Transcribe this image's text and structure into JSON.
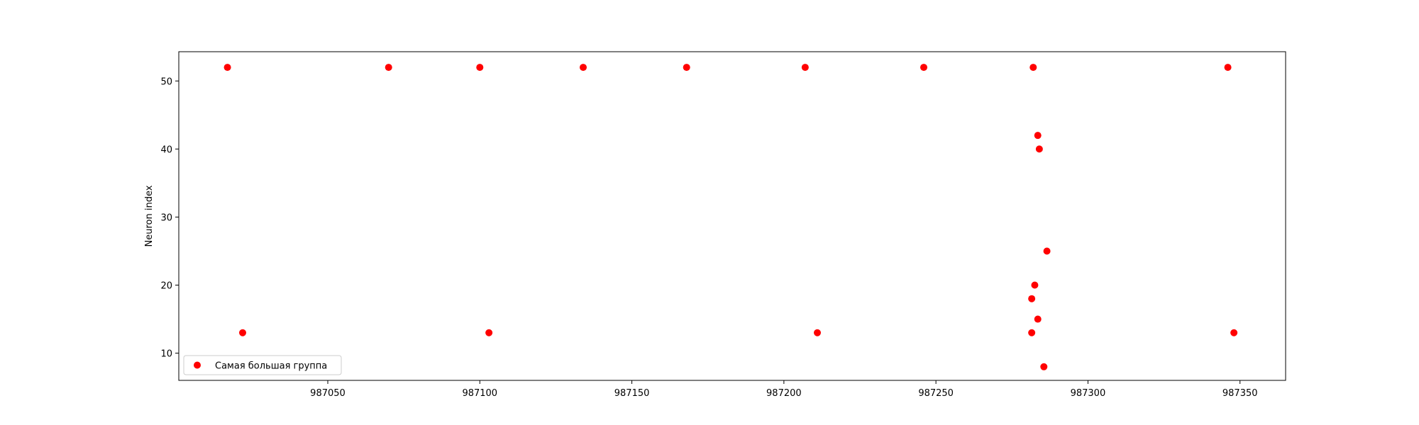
{
  "chart_data": {
    "type": "scatter",
    "title": "",
    "xlabel": "",
    "ylabel": "Neuron index",
    "xlim": [
      987001,
      987365
    ],
    "ylim": [
      6,
      54.3
    ],
    "xticks": [
      987050,
      987100,
      987150,
      987200,
      987250,
      987300,
      987350
    ],
    "yticks": [
      10,
      20,
      30,
      40,
      50
    ],
    "grid": false,
    "legend_position": "lower-left",
    "series": [
      {
        "name": "Самая большая группа",
        "color": "#ff0000",
        "marker": "circle",
        "points": [
          {
            "x": 987017,
            "y": 52
          },
          {
            "x": 987070,
            "y": 52
          },
          {
            "x": 987100,
            "y": 52
          },
          {
            "x": 987134,
            "y": 52
          },
          {
            "x": 987168,
            "y": 52
          },
          {
            "x": 987207,
            "y": 52
          },
          {
            "x": 987246,
            "y": 52
          },
          {
            "x": 987282,
            "y": 52
          },
          {
            "x": 987346,
            "y": 52
          },
          {
            "x": 987283.5,
            "y": 42
          },
          {
            "x": 987284,
            "y": 40
          },
          {
            "x": 987286.5,
            "y": 25
          },
          {
            "x": 987282.5,
            "y": 20
          },
          {
            "x": 987281.5,
            "y": 18
          },
          {
            "x": 987283.5,
            "y": 15
          },
          {
            "x": 987022,
            "y": 13
          },
          {
            "x": 987103,
            "y": 13
          },
          {
            "x": 987211,
            "y": 13
          },
          {
            "x": 987281.5,
            "y": 13
          },
          {
            "x": 987348,
            "y": 13
          },
          {
            "x": 987285.5,
            "y": 8
          }
        ]
      }
    ]
  }
}
